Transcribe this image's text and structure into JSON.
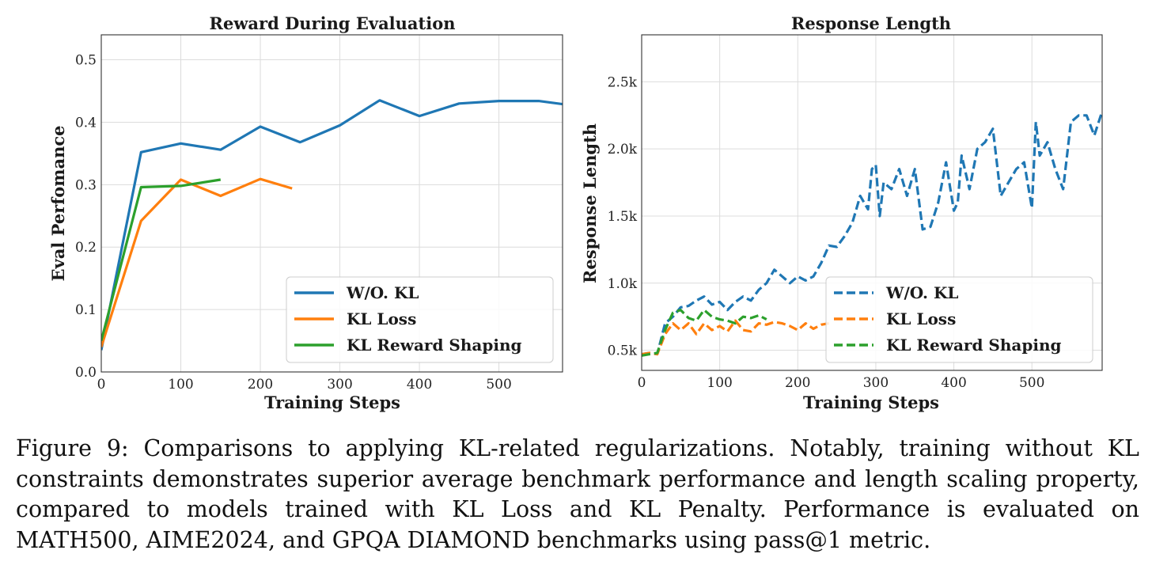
{
  "chart_data": [
    {
      "type": "line",
      "title": "Reward During Evaluation",
      "xlabel": "Training Steps",
      "ylabel": "Eval Perfomance",
      "xlim": [
        0,
        580
      ],
      "ylim": [
        0,
        0.54
      ],
      "xticks": [
        0,
        100,
        200,
        300,
        400,
        500
      ],
      "xtick_labels": [
        "0",
        "100",
        "200",
        "300",
        "400",
        "500"
      ],
      "yticks": [
        0,
        0.1,
        0.2,
        0.3,
        0.4,
        0.5
      ],
      "ytick_labels": [
        "0.0",
        "0.1",
        "0.2",
        "0.3",
        "0.4",
        "0.5"
      ],
      "grid": true,
      "legend_position": "lower-right",
      "series": [
        {
          "name": "W/O. KL",
          "color": "#1f77b4",
          "dash": "solid",
          "x": [
            0,
            50,
            100,
            150,
            200,
            250,
            300,
            350,
            400,
            450,
            500,
            550,
            580
          ],
          "y": [
            0.035,
            0.352,
            0.366,
            0.356,
            0.393,
            0.368,
            0.395,
            0.435,
            0.41,
            0.43,
            0.434,
            0.434,
            0.429
          ]
        },
        {
          "name": "KL Loss",
          "color": "#ff7f0e",
          "dash": "solid",
          "x": [
            0,
            50,
            100,
            150,
            200,
            240
          ],
          "y": [
            0.04,
            0.242,
            0.308,
            0.282,
            0.309,
            0.294
          ]
        },
        {
          "name": "KL Reward Shaping",
          "color": "#2ca02c",
          "dash": "solid",
          "x": [
            0,
            50,
            100,
            150
          ],
          "y": [
            0.05,
            0.296,
            0.298,
            0.308
          ]
        }
      ]
    },
    {
      "type": "line",
      "title": "Response Length",
      "xlabel": "Training Steps",
      "ylabel": "Response Length",
      "xlim": [
        0,
        590
      ],
      "ylim": [
        350,
        2850
      ],
      "xticks": [
        0,
        100,
        200,
        300,
        400,
        500
      ],
      "xtick_labels": [
        "0",
        "100",
        "200",
        "300",
        "400",
        "500"
      ],
      "yticks": [
        500,
        1000,
        1500,
        2000,
        2500
      ],
      "ytick_labels": [
        "0.5k",
        "1.0k",
        "1.5k",
        "2.0k",
        "2.5k"
      ],
      "grid": true,
      "legend_position": "lower-right",
      "series": [
        {
          "name": "W/O. KL",
          "color": "#1f77b4",
          "dash": "dashed",
          "x": [
            0,
            10,
            20,
            30,
            40,
            50,
            60,
            70,
            80,
            90,
            100,
            110,
            120,
            130,
            140,
            150,
            160,
            170,
            180,
            190,
            200,
            210,
            220,
            230,
            240,
            250,
            260,
            270,
            280,
            290,
            295,
            300,
            305,
            310,
            320,
            330,
            340,
            350,
            360,
            370,
            380,
            390,
            400,
            405,
            410,
            420,
            430,
            440,
            450,
            460,
            470,
            480,
            490,
            500,
            505,
            510,
            520,
            530,
            540,
            550,
            560,
            570,
            580,
            590
          ],
          "y": [
            470,
            480,
            470,
            700,
            750,
            820,
            830,
            870,
            900,
            840,
            860,
            800,
            860,
            900,
            870,
            950,
            1000,
            1100,
            1050,
            1000,
            1050,
            1020,
            1050,
            1150,
            1280,
            1270,
            1350,
            1450,
            1650,
            1550,
            1850,
            1880,
            1500,
            1750,
            1700,
            1850,
            1650,
            1850,
            1400,
            1420,
            1600,
            1900,
            1540,
            1600,
            1950,
            1700,
            2000,
            2050,
            2150,
            1650,
            1750,
            1850,
            1900,
            1560,
            2200,
            1950,
            2050,
            1850,
            1700,
            2200,
            2250,
            2250,
            2100,
            2280
          ]
        },
        {
          "name": "KL Loss",
          "color": "#ff7f0e",
          "dash": "dashed",
          "x": [
            0,
            10,
            20,
            30,
            40,
            50,
            60,
            70,
            80,
            90,
            100,
            110,
            120,
            130,
            140,
            150,
            160,
            170,
            180,
            190,
            200,
            210,
            220,
            230,
            240
          ],
          "y": [
            470,
            480,
            470,
            620,
            700,
            650,
            700,
            620,
            700,
            650,
            680,
            640,
            720,
            650,
            640,
            700,
            690,
            710,
            700,
            680,
            650,
            700,
            660,
            690,
            700
          ]
        },
        {
          "name": "KL Reward Shaping",
          "color": "#2ca02c",
          "dash": "dashed",
          "x": [
            0,
            10,
            20,
            30,
            40,
            50,
            60,
            70,
            80,
            90,
            100,
            110,
            120,
            130,
            140,
            150,
            160
          ],
          "y": [
            460,
            470,
            480,
            650,
            780,
            800,
            740,
            720,
            800,
            750,
            730,
            720,
            700,
            750,
            740,
            760,
            730
          ]
        }
      ]
    }
  ],
  "caption": {
    "lines": [
      "Figure 9: Comparisons to applying KL-related regularizations. Notably, training without KL",
      "constraints demonstrates superior average benchmark performance and length scaling property,",
      "compared to models trained with KL Loss and KL Penalty.  Performance is evaluated on",
      "MATH500, AIME2024, and GPQA DIAMOND benchmarks using pass@1 metric."
    ]
  }
}
